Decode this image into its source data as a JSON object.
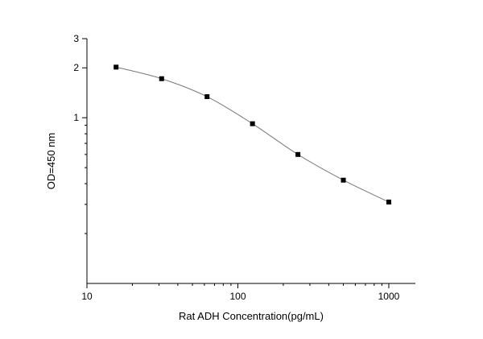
{
  "chart_data": {
    "type": "scatter",
    "xlabel": "Rat ADH  Concentration(pg/mL)",
    "ylabel": "OD=450 nm",
    "x_scale": "log",
    "y_scale": "log",
    "xlim": [
      10,
      1500
    ],
    "ylim": [
      0.1,
      3
    ],
    "x_ticks": [
      10,
      100,
      1000
    ],
    "y_ticks": [
      1,
      2,
      3
    ],
    "grid": false,
    "series": [
      {
        "x": [
          15.6,
          31.25,
          62.5,
          125,
          250,
          500,
          1000
        ],
        "y": [
          2.02,
          1.72,
          1.34,
          0.92,
          0.6,
          0.42,
          0.31
        ],
        "marker": "square",
        "line": "smooth"
      }
    ]
  }
}
